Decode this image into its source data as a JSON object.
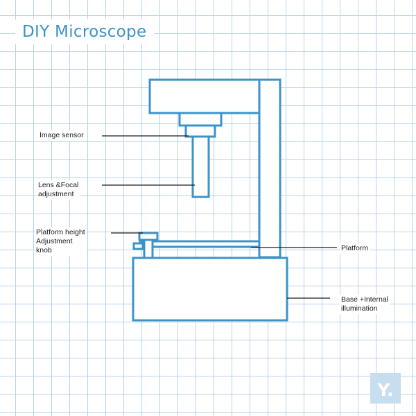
{
  "title": "DIY Microscope",
  "colors": {
    "outline": "#3d93c9",
    "grid": "#b7d3ea",
    "leader": "#1a1a1a",
    "logo_bg": "#c6deef"
  },
  "labels": {
    "image_sensor": "Image sensor",
    "lens": "Lens &Focal\nadjustment",
    "knob": "Platform height\nAdjustment\nknob",
    "platform": "Platform",
    "base": "Base +Internal\nillumination"
  },
  "logo_text": "Y."
}
